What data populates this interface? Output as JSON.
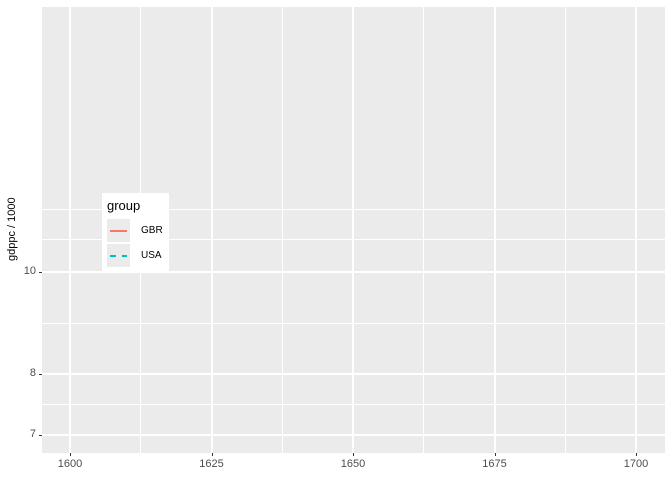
{
  "window": {
    "background": "#FFFFFF"
  },
  "chart_data": {
    "type": "line",
    "title": "",
    "xlabel": "",
    "ylabel": "gdppc / 1000",
    "x_ticks": [
      1600,
      1625,
      1650,
      1675,
      1700
    ],
    "x_tick_labels": [
      "1600",
      "1625",
      "1650",
      "1675",
      "1700"
    ],
    "x_minor_ticks": [
      1612.5,
      1637.5,
      1662.5,
      1687.5
    ],
    "y_ticks": [
      10,
      8,
      7
    ],
    "y_tick_labels": [
      "10",
      "8",
      "7"
    ],
    "y_minor_gridlines": [
      11.46,
      10.73,
      8.94,
      7.48
    ],
    "y_scale": "log10",
    "xlim": [
      1595,
      1705.1
    ],
    "ylim": [
      6.72,
      17.88
    ],
    "grid": true,
    "legend_position": "inside-left",
    "panel_background": "#EBEBEB",
    "gridline_color": "#FFFFFF",
    "axis_text_color": "#4D4D4D",
    "tick_mark_color": "#333333",
    "series": [
      {
        "name": "GBR",
        "color": "#F8766D",
        "linestyle": "solid",
        "points": []
      },
      {
        "name": "USA",
        "color": "#00BFC4",
        "linestyle": "dashed",
        "points": []
      }
    ]
  },
  "legend": {
    "title": "group",
    "key_fill": "#EBEBEB",
    "background": "#FFFFFF",
    "items": [
      {
        "label": "GBR",
        "color": "#F8766D",
        "linestyle": "solid"
      },
      {
        "label": "USA",
        "color": "#00BFC4",
        "linestyle": "dashed"
      }
    ]
  }
}
